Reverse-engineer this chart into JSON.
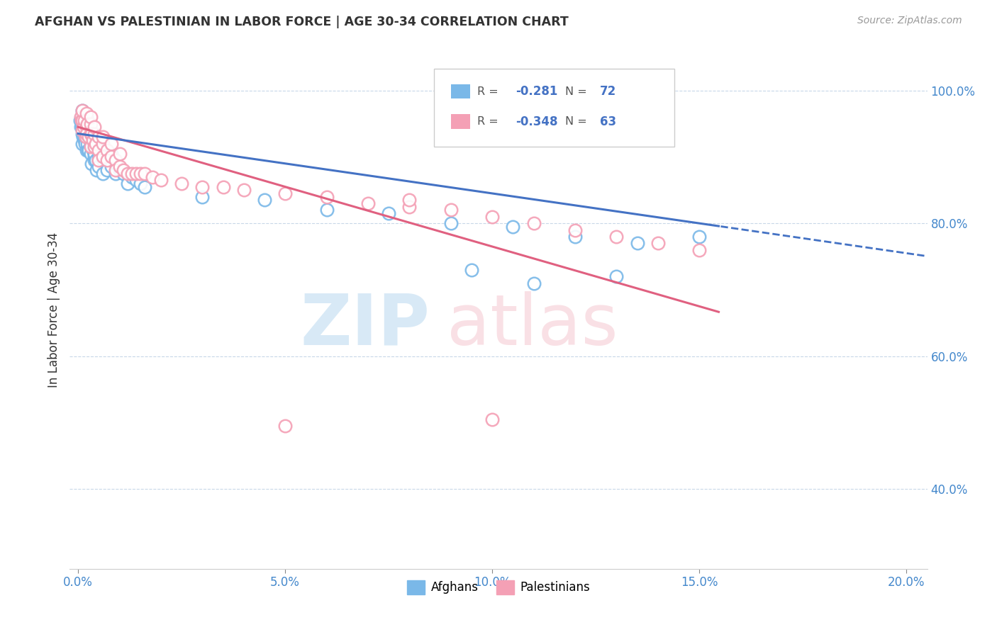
{
  "title": "AFGHAN VS PALESTINIAN IN LABOR FORCE | AGE 30-34 CORRELATION CHART",
  "source": "Source: ZipAtlas.com",
  "ylabel": "In Labor Force | Age 30-34",
  "xlim": [
    -0.002,
    0.205
  ],
  "ylim": [
    0.28,
    1.06
  ],
  "xtick_vals": [
    0.0,
    0.05,
    0.1,
    0.15,
    0.2
  ],
  "ytick_vals": [
    0.4,
    0.6,
    0.8,
    1.0
  ],
  "afghan_color": "#7ab8e8",
  "palestinian_color": "#f4a0b5",
  "afghan_line_color": "#4472C4",
  "palestinian_line_color": "#e06080",
  "afghan_R": -0.281,
  "afghan_N": 72,
  "palestinian_R": -0.348,
  "palestinian_N": 63,
  "legend_label_afghan": "Afghans",
  "legend_label_palestinian": "Palestinians",
  "afghan_x": [
    0.0005,
    0.0007,
    0.0008,
    0.001,
    0.001,
    0.001,
    0.001,
    0.001,
    0.0012,
    0.0013,
    0.0015,
    0.0015,
    0.0016,
    0.0017,
    0.0018,
    0.002,
    0.002,
    0.002,
    0.002,
    0.002,
    0.0022,
    0.0023,
    0.0025,
    0.0025,
    0.003,
    0.003,
    0.003,
    0.003,
    0.003,
    0.0032,
    0.0035,
    0.0038,
    0.004,
    0.004,
    0.004,
    0.004,
    0.0042,
    0.0045,
    0.005,
    0.005,
    0.005,
    0.005,
    0.006,
    0.006,
    0.006,
    0.007,
    0.007,
    0.007,
    0.008,
    0.008,
    0.009,
    0.009,
    0.01,
    0.011,
    0.012,
    0.012,
    0.013,
    0.014,
    0.015,
    0.016,
    0.03,
    0.045,
    0.06,
    0.075,
    0.09,
    0.105,
    0.12,
    0.135,
    0.15,
    0.13,
    0.11,
    0.095
  ],
  "afghan_y": [
    0.955,
    0.945,
    0.96,
    0.97,
    0.935,
    0.92,
    0.945,
    0.96,
    0.93,
    0.955,
    0.94,
    0.925,
    0.93,
    0.92,
    0.935,
    0.96,
    0.94,
    0.93,
    0.91,
    0.95,
    0.92,
    0.91,
    0.935,
    0.91,
    0.935,
    0.915,
    0.93,
    0.905,
    0.92,
    0.89,
    0.91,
    0.925,
    0.895,
    0.915,
    0.9,
    0.905,
    0.895,
    0.88,
    0.915,
    0.9,
    0.895,
    0.885,
    0.895,
    0.91,
    0.875,
    0.89,
    0.905,
    0.88,
    0.885,
    0.905,
    0.89,
    0.875,
    0.88,
    0.875,
    0.875,
    0.86,
    0.87,
    0.865,
    0.86,
    0.855,
    0.84,
    0.835,
    0.82,
    0.815,
    0.8,
    0.795,
    0.78,
    0.77,
    0.78,
    0.72,
    0.71,
    0.73
  ],
  "palestinian_x": [
    0.0006,
    0.0008,
    0.001,
    0.001,
    0.001,
    0.0013,
    0.0015,
    0.0018,
    0.002,
    0.002,
    0.002,
    0.0022,
    0.0025,
    0.003,
    0.003,
    0.003,
    0.003,
    0.0032,
    0.0035,
    0.004,
    0.004,
    0.004,
    0.0042,
    0.005,
    0.005,
    0.005,
    0.006,
    0.006,
    0.006,
    0.007,
    0.007,
    0.008,
    0.008,
    0.009,
    0.009,
    0.01,
    0.01,
    0.011,
    0.012,
    0.013,
    0.014,
    0.015,
    0.016,
    0.018,
    0.02,
    0.025,
    0.03,
    0.035,
    0.04,
    0.05,
    0.06,
    0.07,
    0.08,
    0.09,
    0.1,
    0.11,
    0.12,
    0.13,
    0.14,
    0.15,
    0.1,
    0.05,
    0.08
  ],
  "palestinian_y": [
    0.96,
    0.955,
    0.955,
    0.97,
    0.94,
    0.945,
    0.955,
    0.93,
    0.945,
    0.965,
    0.935,
    0.95,
    0.93,
    0.95,
    0.935,
    0.915,
    0.96,
    0.935,
    0.925,
    0.935,
    0.915,
    0.945,
    0.92,
    0.91,
    0.93,
    0.895,
    0.92,
    0.9,
    0.93,
    0.91,
    0.895,
    0.9,
    0.92,
    0.895,
    0.88,
    0.885,
    0.905,
    0.88,
    0.875,
    0.875,
    0.875,
    0.875,
    0.875,
    0.87,
    0.865,
    0.86,
    0.855,
    0.855,
    0.85,
    0.845,
    0.84,
    0.83,
    0.825,
    0.82,
    0.81,
    0.8,
    0.79,
    0.78,
    0.77,
    0.76,
    0.505,
    0.495,
    0.835
  ]
}
